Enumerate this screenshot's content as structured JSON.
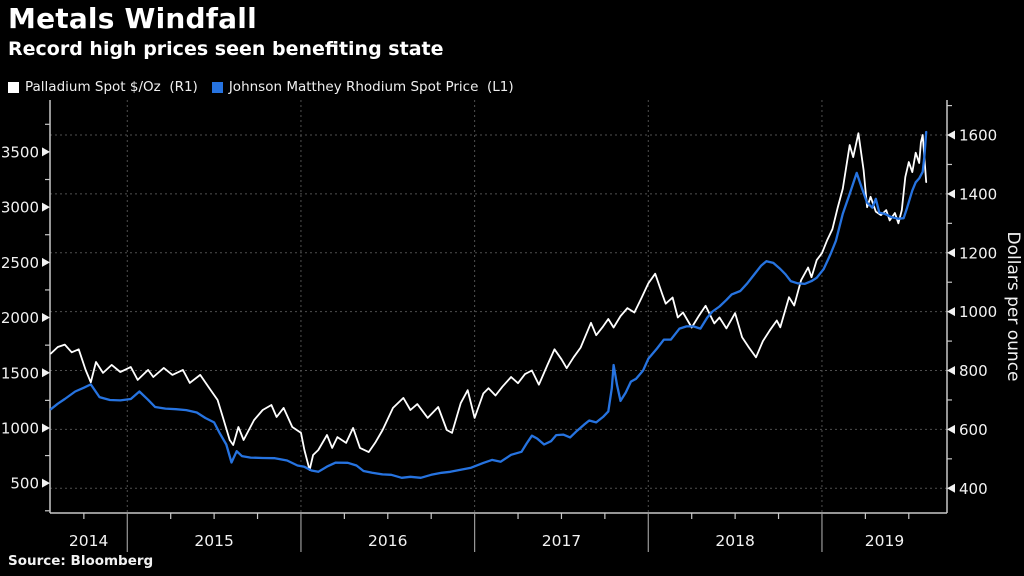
{
  "header": {
    "title": "Metals Windfall",
    "subtitle": "Record high prices seen benefiting state"
  },
  "legend": [
    {
      "label": "Palladium Spot $/Oz  (R1)",
      "color": "#ffffff"
    },
    {
      "label": "Johnson Matthey Rhodium Spot Price  (L1)",
      "color": "#2673e0"
    }
  ],
  "source": "Source: Bloomberg",
  "colors": {
    "background": "#000000",
    "grid": "#4f4f4f",
    "axis": "#c8c8c8",
    "text": "#f2f2f2",
    "palladium": "#ffffff",
    "rhodium": "#2673e0"
  },
  "chart_data": {
    "type": "line",
    "title": "Metals Windfall",
    "subtitle": "Record high prices seen benefiting state",
    "grid": "dashed",
    "legend_position": "top-left",
    "x_axis": {
      "min": 2014.555,
      "max": 2019.72,
      "major_ticks": [
        2015,
        2016,
        2017,
        2018,
        2019
      ],
      "minor_step": 0.25,
      "year_labels": [
        "2014",
        "2015",
        "2016",
        "2017",
        "2018",
        "2019"
      ]
    },
    "left_axis": {
      "min": 230,
      "max": 3970,
      "tick_values": [
        500,
        1000,
        1500,
        2000,
        2500,
        3000,
        3500
      ],
      "minor_step": 250,
      "series": "Johnson Matthey Rhodium Spot Price (L1)"
    },
    "right_axis": {
      "min": 316,
      "max": 1719,
      "tick_values": [
        400,
        600,
        800,
        1000,
        1200,
        1400,
        1600
      ],
      "minor_step": 100,
      "axis_label": "Dollars per ounce",
      "series": "Palladium Spot $/Oz (R1)"
    },
    "series": [
      {
        "name": "Palladium Spot $/Oz",
        "axis": "right",
        "color": "#ffffff",
        "points": [
          [
            2014.56,
            858
          ],
          [
            2014.6,
            880
          ],
          [
            2014.64,
            888
          ],
          [
            2014.68,
            862
          ],
          [
            2014.72,
            872
          ],
          [
            2014.76,
            802
          ],
          [
            2014.79,
            760
          ],
          [
            2014.82,
            829
          ],
          [
            2014.86,
            792
          ],
          [
            2014.91,
            819
          ],
          [
            2014.96,
            795
          ],
          [
            2015.02,
            812
          ],
          [
            2015.06,
            768
          ],
          [
            2015.12,
            802
          ],
          [
            2015.15,
            778
          ],
          [
            2015.21,
            809
          ],
          [
            2015.26,
            785
          ],
          [
            2015.32,
            802
          ],
          [
            2015.36,
            758
          ],
          [
            2015.42,
            785
          ],
          [
            2015.48,
            734
          ],
          [
            2015.52,
            700
          ],
          [
            2015.55,
            642
          ],
          [
            2015.59,
            564
          ],
          [
            2015.61,
            547
          ],
          [
            2015.64,
            608
          ],
          [
            2015.67,
            564
          ],
          [
            2015.73,
            632
          ],
          [
            2015.78,
            666
          ],
          [
            2015.83,
            683
          ],
          [
            2015.86,
            642
          ],
          [
            2015.9,
            673
          ],
          [
            2015.95,
            608
          ],
          [
            2016.0,
            588
          ],
          [
            2016.02,
            530
          ],
          [
            2016.05,
            462
          ],
          [
            2016.07,
            513
          ],
          [
            2016.1,
            530
          ],
          [
            2016.15,
            581
          ],
          [
            2016.18,
            537
          ],
          [
            2016.21,
            574
          ],
          [
            2016.26,
            554
          ],
          [
            2016.3,
            605
          ],
          [
            2016.34,
            537
          ],
          [
            2016.39,
            523
          ],
          [
            2016.43,
            557
          ],
          [
            2016.47,
            598
          ],
          [
            2016.53,
            673
          ],
          [
            2016.59,
            707
          ],
          [
            2016.63,
            666
          ],
          [
            2016.67,
            686
          ],
          [
            2016.73,
            639
          ],
          [
            2016.79,
            676
          ],
          [
            2016.84,
            598
          ],
          [
            2016.87,
            588
          ],
          [
            2016.92,
            689
          ],
          [
            2016.96,
            733
          ],
          [
            2017.0,
            639
          ],
          [
            2017.05,
            722
          ],
          [
            2017.08,
            740
          ],
          [
            2017.12,
            715
          ],
          [
            2017.16,
            745
          ],
          [
            2017.21,
            778
          ],
          [
            2017.25,
            757
          ],
          [
            2017.29,
            788
          ],
          [
            2017.33,
            800
          ],
          [
            2017.37,
            752
          ],
          [
            2017.42,
            820
          ],
          [
            2017.46,
            872
          ],
          [
            2017.5,
            838
          ],
          [
            2017.53,
            808
          ],
          [
            2017.57,
            845
          ],
          [
            2017.61,
            878
          ],
          [
            2017.64,
            920
          ],
          [
            2017.67,
            962
          ],
          [
            2017.7,
            920
          ],
          [
            2017.74,
            950
          ],
          [
            2017.77,
            975
          ],
          [
            2017.8,
            946
          ],
          [
            2017.84,
            985
          ],
          [
            2017.88,
            1012
          ],
          [
            2017.92,
            997
          ],
          [
            2017.96,
            1045
          ],
          [
            2018.0,
            1096
          ],
          [
            2018.04,
            1129
          ],
          [
            2018.08,
            1060
          ],
          [
            2018.1,
            1027
          ],
          [
            2018.14,
            1048
          ],
          [
            2018.17,
            980
          ],
          [
            2018.2,
            997
          ],
          [
            2018.25,
            946
          ],
          [
            2018.29,
            985
          ],
          [
            2018.33,
            1020
          ],
          [
            2018.38,
            960
          ],
          [
            2018.41,
            980
          ],
          [
            2018.45,
            943
          ],
          [
            2018.5,
            995
          ],
          [
            2018.54,
            913
          ],
          [
            2018.58,
            878
          ],
          [
            2018.62,
            845
          ],
          [
            2018.66,
            900
          ],
          [
            2018.7,
            937
          ],
          [
            2018.74,
            970
          ],
          [
            2018.76,
            947
          ],
          [
            2018.81,
            1049
          ],
          [
            2018.84,
            1021
          ],
          [
            2018.88,
            1107
          ],
          [
            2018.92,
            1150
          ],
          [
            2018.94,
            1117
          ],
          [
            2018.97,
            1175
          ],
          [
            2019.0,
            1199
          ],
          [
            2019.03,
            1243
          ],
          [
            2019.06,
            1280
          ],
          [
            2019.09,
            1352
          ],
          [
            2019.12,
            1418
          ],
          [
            2019.16,
            1566
          ],
          [
            2019.18,
            1525
          ],
          [
            2019.21,
            1606
          ],
          [
            2019.24,
            1481
          ],
          [
            2019.26,
            1355
          ],
          [
            2019.28,
            1390
          ],
          [
            2019.31,
            1340
          ],
          [
            2019.34,
            1328
          ],
          [
            2019.37,
            1345
          ],
          [
            2019.39,
            1310
          ],
          [
            2019.42,
            1335
          ],
          [
            2019.44,
            1300
          ],
          [
            2019.46,
            1345
          ],
          [
            2019.48,
            1457
          ],
          [
            2019.5,
            1508
          ],
          [
            2019.52,
            1474
          ],
          [
            2019.54,
            1540
          ],
          [
            2019.56,
            1505
          ],
          [
            2019.57,
            1575
          ],
          [
            2019.58,
            1600
          ],
          [
            2019.6,
            1440
          ]
        ]
      },
      {
        "name": "Johnson Matthey Rhodium Spot Price",
        "axis": "left",
        "color": "#2673e0",
        "points": [
          [
            2014.56,
            1170
          ],
          [
            2014.6,
            1220
          ],
          [
            2014.64,
            1262
          ],
          [
            2014.7,
            1330
          ],
          [
            2014.75,
            1365
          ],
          [
            2014.79,
            1395
          ],
          [
            2014.84,
            1280
          ],
          [
            2014.9,
            1253
          ],
          [
            2014.96,
            1250
          ],
          [
            2015.02,
            1262
          ],
          [
            2015.07,
            1330
          ],
          [
            2015.12,
            1255
          ],
          [
            2015.16,
            1190
          ],
          [
            2015.22,
            1175
          ],
          [
            2015.28,
            1170
          ],
          [
            2015.34,
            1162
          ],
          [
            2015.4,
            1140
          ],
          [
            2015.45,
            1090
          ],
          [
            2015.5,
            1050
          ],
          [
            2015.53,
            960
          ],
          [
            2015.57,
            850
          ],
          [
            2015.6,
            687
          ],
          [
            2015.63,
            790
          ],
          [
            2015.66,
            745
          ],
          [
            2015.71,
            732
          ],
          [
            2015.78,
            728
          ],
          [
            2015.85,
            726
          ],
          [
            2015.92,
            705
          ],
          [
            2015.98,
            660
          ],
          [
            2016.02,
            648
          ],
          [
            2016.06,
            615
          ],
          [
            2016.1,
            603
          ],
          [
            2016.15,
            650
          ],
          [
            2016.2,
            686
          ],
          [
            2016.27,
            685
          ],
          [
            2016.32,
            660
          ],
          [
            2016.36,
            610
          ],
          [
            2016.41,
            594
          ],
          [
            2016.47,
            580
          ],
          [
            2016.52,
            576
          ],
          [
            2016.58,
            549
          ],
          [
            2016.63,
            558
          ],
          [
            2016.69,
            549
          ],
          [
            2016.75,
            576
          ],
          [
            2016.81,
            594
          ],
          [
            2016.86,
            603
          ],
          [
            2016.92,
            621
          ],
          [
            2016.98,
            640
          ],
          [
            2017.05,
            684
          ],
          [
            2017.1,
            711
          ],
          [
            2017.15,
            695
          ],
          [
            2017.21,
            757
          ],
          [
            2017.27,
            784
          ],
          [
            2017.3,
            860
          ],
          [
            2017.33,
            930
          ],
          [
            2017.36,
            905
          ],
          [
            2017.4,
            850
          ],
          [
            2017.44,
            880
          ],
          [
            2017.47,
            935
          ],
          [
            2017.51,
            940
          ],
          [
            2017.55,
            915
          ],
          [
            2017.59,
            975
          ],
          [
            2017.63,
            1030
          ],
          [
            2017.66,
            1068
          ],
          [
            2017.7,
            1050
          ],
          [
            2017.74,
            1100
          ],
          [
            2017.77,
            1150
          ],
          [
            2017.79,
            1360
          ],
          [
            2017.8,
            1570
          ],
          [
            2017.82,
            1390
          ],
          [
            2017.84,
            1245
          ],
          [
            2017.87,
            1320
          ],
          [
            2017.9,
            1420
          ],
          [
            2017.93,
            1445
          ],
          [
            2017.97,
            1520
          ],
          [
            2018.0,
            1626
          ],
          [
            2018.05,
            1720
          ],
          [
            2018.09,
            1800
          ],
          [
            2018.13,
            1800
          ],
          [
            2018.18,
            1900
          ],
          [
            2018.22,
            1920
          ],
          [
            2018.26,
            1920
          ],
          [
            2018.3,
            1900
          ],
          [
            2018.34,
            2000
          ],
          [
            2018.37,
            2055
          ],
          [
            2018.41,
            2100
          ],
          [
            2018.45,
            2160
          ],
          [
            2018.48,
            2210
          ],
          [
            2018.53,
            2240
          ],
          [
            2018.57,
            2310
          ],
          [
            2018.61,
            2390
          ],
          [
            2018.65,
            2470
          ],
          [
            2018.68,
            2510
          ],
          [
            2018.72,
            2495
          ],
          [
            2018.76,
            2440
          ],
          [
            2018.79,
            2392
          ],
          [
            2018.82,
            2330
          ],
          [
            2018.86,
            2310
          ],
          [
            2018.9,
            2305
          ],
          [
            2018.94,
            2330
          ],
          [
            2018.97,
            2360
          ],
          [
            2019.01,
            2440
          ],
          [
            2019.05,
            2575
          ],
          [
            2019.08,
            2695
          ],
          [
            2019.12,
            2940
          ],
          [
            2019.16,
            3120
          ],
          [
            2019.2,
            3310
          ],
          [
            2019.23,
            3170
          ],
          [
            2019.26,
            3040
          ],
          [
            2019.29,
            2995
          ],
          [
            2019.31,
            3075
          ],
          [
            2019.33,
            2950
          ],
          [
            2019.36,
            2940
          ],
          [
            2019.4,
            2910
          ],
          [
            2019.44,
            2895
          ],
          [
            2019.47,
            2900
          ],
          [
            2019.49,
            2995
          ],
          [
            2019.52,
            3150
          ],
          [
            2019.54,
            3225
          ],
          [
            2019.56,
            3260
          ],
          [
            2019.58,
            3320
          ],
          [
            2019.59,
            3460
          ],
          [
            2019.6,
            3680
          ]
        ]
      }
    ]
  }
}
